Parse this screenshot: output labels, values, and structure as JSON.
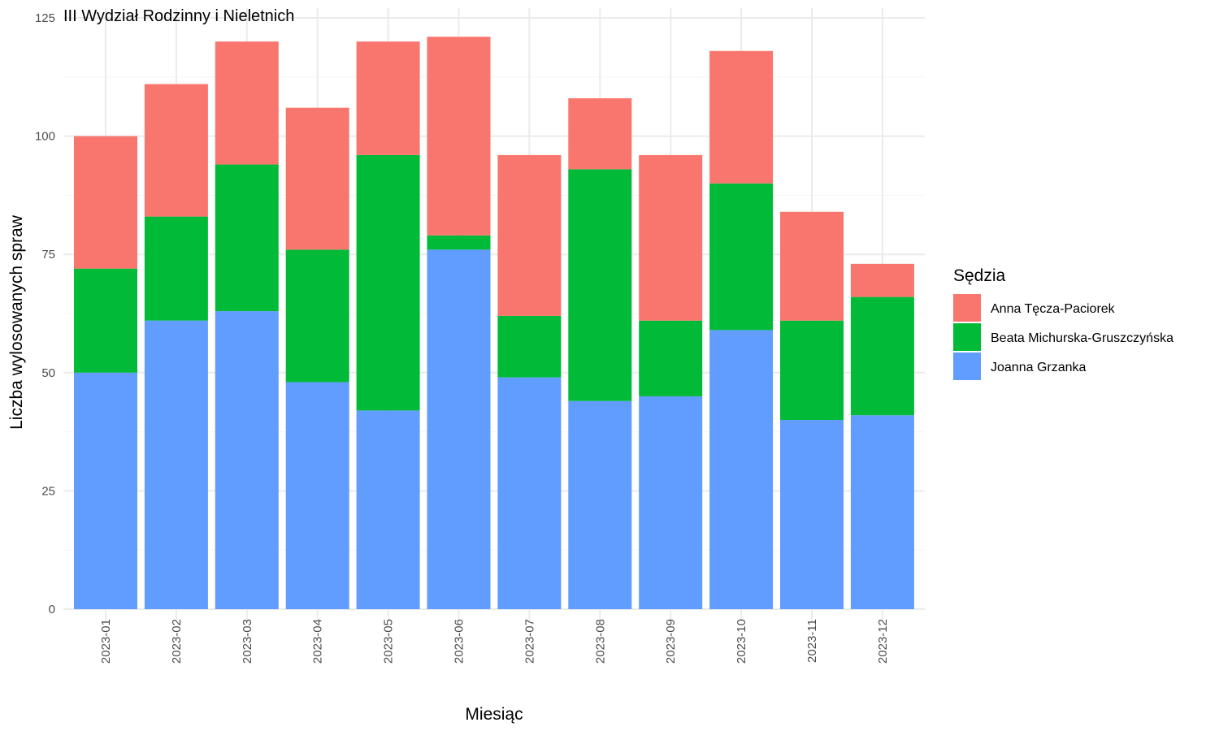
{
  "chart_data": {
    "type": "bar",
    "stacked": true,
    "title": "III Wydział Rodzinny i Nieletnich",
    "xlabel": "Miesiąc",
    "ylabel": "Liczba wylosowanych spraw",
    "ylim": [
      0,
      125
    ],
    "yticks": [
      0,
      25,
      50,
      75,
      100,
      125
    ],
    "grid": true,
    "legend_title": "Sędzia",
    "legend_position": "right",
    "categories": [
      "2023-01",
      "2023-02",
      "2023-03",
      "2023-04",
      "2023-05",
      "2023-06",
      "2023-07",
      "2023-08",
      "2023-09",
      "2023-10",
      "2023-11",
      "2023-12"
    ],
    "series": [
      {
        "name": "Joanna Grzanka",
        "color": "#619CFF",
        "values": [
          50,
          61,
          63,
          48,
          42,
          76,
          49,
          44,
          45,
          59,
          40,
          41
        ]
      },
      {
        "name": "Beata Michurska-Gruszczyńska",
        "color": "#00BA38",
        "values": [
          22,
          22,
          31,
          28,
          54,
          3,
          13,
          49,
          16,
          31,
          21,
          25
        ]
      },
      {
        "name": "Anna Tęcza-Paciorek",
        "color": "#F8766D",
        "values": [
          28,
          28,
          26,
          30,
          24,
          42,
          34,
          15,
          35,
          28,
          23,
          7
        ]
      }
    ],
    "legend_order": [
      "Anna Tęcza-Paciorek",
      "Beata Michurska-Gruszczyńska",
      "Joanna Grzanka"
    ]
  }
}
